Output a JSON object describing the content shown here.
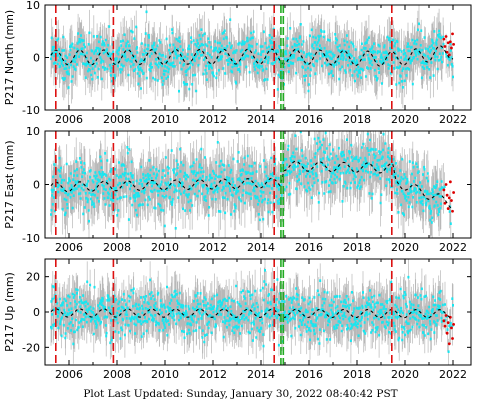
{
  "footer": "Plot Last Updated:   Sunday, January 30, 2022 08:40:42 PST",
  "colors": {
    "observed": "#19e6f0",
    "error_bars": "#b8b8b8",
    "model": "#000000",
    "recent": "#dd0000",
    "equipment_change": "#dd1111",
    "earthquake": "#22aa22",
    "axes": "#000000"
  },
  "chart_data": [
    {
      "type": "scatter",
      "ylabel": "P217 North (mm)",
      "xlim": [
        2005.0,
        2022.75
      ],
      "ylim": [
        -10,
        10
      ],
      "yticks": [
        -10,
        0,
        10
      ],
      "xticks": [
        2006,
        2008,
        2010,
        2012,
        2014,
        2016,
        2018,
        2020,
        2022
      ],
      "show_xtick_labels": true,
      "seasonal_amplitude": 1.4,
      "scatter_spread": 2.2,
      "model_trend": [
        [
          2005.2,
          0.0
        ],
        [
          2014.9,
          0.2
        ],
        [
          2019.5,
          -0.3
        ],
        [
          2022.1,
          1.2
        ]
      ],
      "recent_points_y": [
        3.5,
        2.1,
        4.0,
        1.0,
        2.8,
        0.5,
        3.0,
        1.8,
        4.5,
        2.5
      ],
      "grid": false,
      "legend": "none"
    },
    {
      "type": "scatter",
      "ylabel": "P217 East (mm)",
      "xlim": [
        2005.0,
        2022.75
      ],
      "ylim": [
        -10,
        10
      ],
      "yticks": [
        -10,
        0,
        10
      ],
      "xticks": [
        2006,
        2008,
        2010,
        2012,
        2014,
        2016,
        2018,
        2020,
        2022
      ],
      "show_xtick_labels": true,
      "seasonal_amplitude": 0.9,
      "scatter_spread": 2.4,
      "model_trend": [
        [
          2005.2,
          -0.5
        ],
        [
          2014.8,
          0.3
        ],
        [
          2014.95,
          3.5
        ],
        [
          2019.5,
          3.0
        ],
        [
          2019.6,
          0.5
        ],
        [
          2022.1,
          -3.8
        ]
      ],
      "recent_points_y": [
        -1.0,
        -3.5,
        0.0,
        -2.0,
        -4.5,
        -2.5,
        0.5,
        -3.0,
        -5.0,
        -1.5
      ],
      "grid": false,
      "legend": "none"
    },
    {
      "type": "scatter",
      "ylabel": "P217 Up (mm)",
      "xlim": [
        2005.0,
        2022.75
      ],
      "ylim": [
        -30,
        30
      ],
      "yticks": [
        -20,
        0,
        20
      ],
      "xticks": [
        2006,
        2008,
        2010,
        2012,
        2014,
        2016,
        2018,
        2020,
        2022
      ],
      "show_xtick_labels": true,
      "seasonal_amplitude": 2.3,
      "scatter_spread": 6.5,
      "model_trend": [
        [
          2005.2,
          -0.5
        ],
        [
          2022.1,
          -1.0
        ]
      ],
      "recent_points_y": [
        -5.0,
        -8.0,
        -2.0,
        -12.0,
        -6.0,
        -18.0,
        -3.0,
        -9.0,
        -15.0,
        -7.0
      ],
      "grid": false,
      "legend": "none"
    }
  ],
  "equipment_changes": [
    2005.45,
    2007.85,
    2014.55,
    2019.45
  ],
  "earthquakes": [
    2014.83,
    2014.93
  ]
}
